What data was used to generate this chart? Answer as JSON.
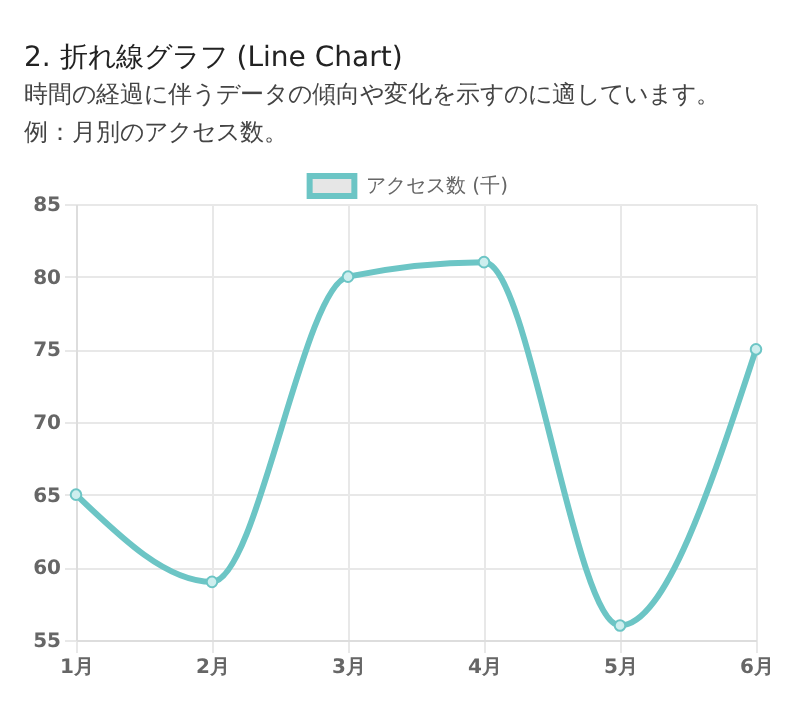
{
  "chart_data": {
    "type": "line",
    "title": "2. 折れ線グラフ (Line Chart)",
    "subtitle": "時間の経過に伴うデータの傾向や変化を示すのに適しています。",
    "annotations": [
      "例：月別のアクセス数。"
    ],
    "categories": [
      "1月",
      "2月",
      "3月",
      "4月",
      "5月",
      "6月"
    ],
    "series": [
      {
        "name": "アクセス数 (千)",
        "color": "#6cc5c5",
        "values": [
          65,
          59,
          80,
          81,
          56,
          75
        ]
      }
    ],
    "ylim": [
      55,
      85
    ],
    "yticks": [
      55,
      60,
      65,
      70,
      75,
      80,
      85
    ],
    "grid": true,
    "legend": "top",
    "marker": "circle",
    "line_style": "solid"
  }
}
